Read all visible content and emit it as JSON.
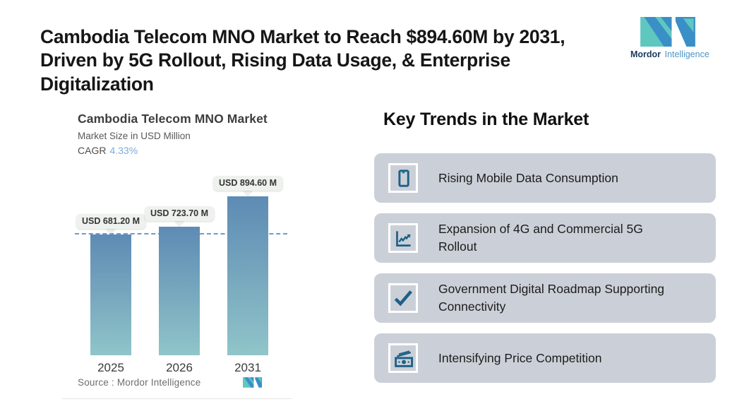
{
  "header": {
    "title_line1": "Cambodia Telecom MNO Market to Reach $894.60M by 2031,",
    "title_line2": "Driven by 5G Rollout, Rising Data Usage, & Enterprise Digitalization",
    "logo": {
      "brand_bold": "Mordor",
      "brand_light": "Intelligence"
    }
  },
  "chart": {
    "title": "Cambodia Telecom MNO Market",
    "subtitle": "Market Size in USD Million",
    "cagr_label": "CAGR",
    "cagr_value": "4.33%",
    "source_text": "Source :  Mordor Intelligence"
  },
  "chart_data": {
    "type": "bar",
    "title": "Cambodia Telecom MNO Market",
    "ylabel": "Market Size in USD Million",
    "categories": [
      "2025",
      "2026",
      "2031"
    ],
    "values": [
      681.2,
      723.7,
      894.6
    ],
    "bar_labels": [
      "USD 681.20 M",
      "USD 723.70 M",
      "USD 894.60 M"
    ],
    "cagr_percent": 4.33,
    "reference_line_value": 681.2,
    "ylim": [
      0,
      894.6
    ],
    "grid": false,
    "legend": false,
    "bar_color_top": "#5d8bb4",
    "bar_color_bottom": "#90c5c9",
    "reference_line_color": "#6d9cc9"
  },
  "trends": {
    "heading": "Key Trends in the Market",
    "items": [
      {
        "icon": "smartphone-icon",
        "label": "Rising Mobile Data Consumption"
      },
      {
        "icon": "line-chart-icon",
        "label": "Expansion of 4G and Commercial 5G Rollout"
      },
      {
        "icon": "checkmark-icon",
        "label": "Government Digital Roadmap Supporting Connectivity"
      },
      {
        "icon": "banknote-icon",
        "label": "Intensifying Price Competition"
      }
    ]
  },
  "colors": {
    "brand_teal": "#5ec7c0",
    "brand_blue": "#3a8fc7",
    "card_background": "#cbd0d8",
    "icon_glyph": "#1d6086",
    "cagr_accent": "#7cadda"
  }
}
